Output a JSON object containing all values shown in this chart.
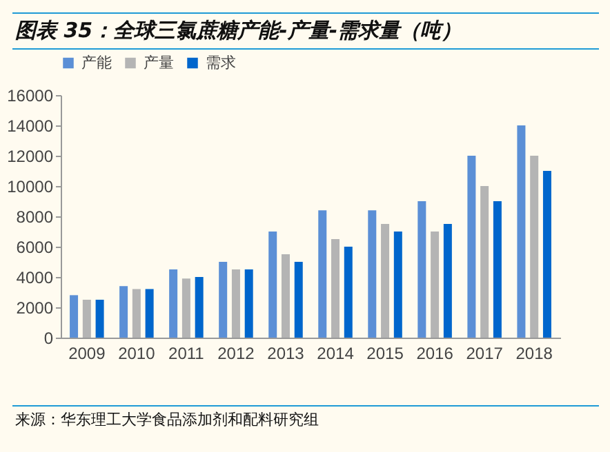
{
  "chart_data": {
    "type": "bar",
    "title": "图表 35：全球三氯蔗糖产能-产量-需求量（吨）",
    "categories": [
      "2009",
      "2010",
      "2011",
      "2012",
      "2013",
      "2014",
      "2015",
      "2016",
      "2017",
      "2018"
    ],
    "series": [
      {
        "name": "产能",
        "color": "#5b8fd6",
        "values": [
          2800,
          3400,
          4500,
          5000,
          7000,
          8400,
          8400,
          9000,
          12000,
          14000
        ]
      },
      {
        "name": "产量",
        "color": "#b4b4b4",
        "values": [
          2500,
          3200,
          3900,
          4500,
          5500,
          6500,
          7500,
          7000,
          10000,
          12000
        ]
      },
      {
        "name": "需求",
        "color": "#0066cc",
        "values": [
          2500,
          3200,
          4000,
          4500,
          5000,
          6000,
          7000,
          7500,
          9000,
          11000
        ]
      }
    ],
    "ylim": [
      0,
      16000
    ],
    "yticks": [
      0,
      2000,
      4000,
      6000,
      8000,
      10000,
      12000,
      14000,
      16000
    ],
    "grid": false,
    "legend": "top",
    "annotations": [
      "来源：华东理工大学食品添加剂和配料研究组"
    ]
  }
}
